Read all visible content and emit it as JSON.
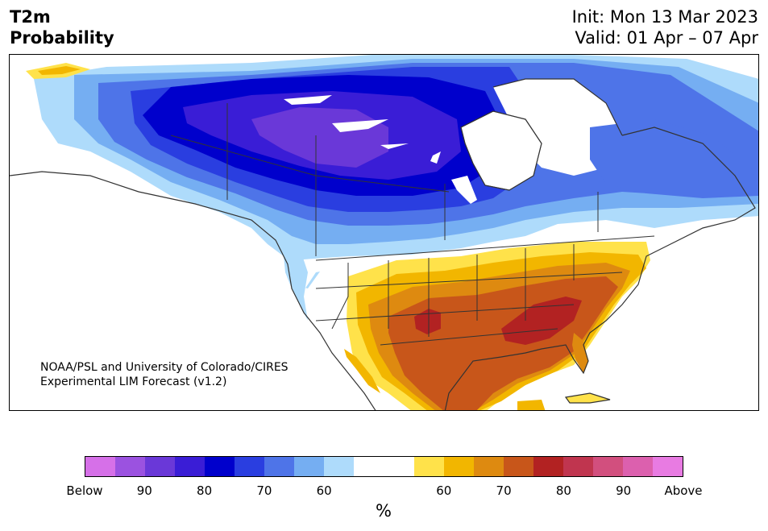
{
  "title": {
    "line1": "T2m",
    "line2": "Probability"
  },
  "info": {
    "init": "Init: Mon 13 Mar 2023",
    "valid": "Valid: 01 Apr – 07 Apr"
  },
  "credit": {
    "line1": "NOAA/PSL and University of Colorado/CIRES",
    "line2": "Experimental LIM Forecast (v1.2)"
  },
  "colorbar": {
    "colors": [
      "#d670e8",
      "#9b52e0",
      "#6a38d8",
      "#3a1dd6",
      "#0000cc",
      "#2a3ee0",
      "#4e74e8",
      "#75aef2",
      "#aedbfb",
      "#ffffff",
      "#ffffff",
      "#ffe24a",
      "#f2b600",
      "#de8a10",
      "#c8561a",
      "#b22222",
      "#c0354f",
      "#d24f7e",
      "#dc60ae",
      "#e87be2"
    ],
    "tick_labels": [
      "Below",
      "90",
      "80",
      "70",
      "60",
      "60",
      "70",
      "80",
      "90",
      "Above"
    ],
    "unit": "%"
  },
  "legend_colors": {
    "cold_strong": "#6a38d8",
    "cold": "#0000cc",
    "cool": "#4e74e8",
    "cool_light": "#aedbfb",
    "warm_light": "#ffe24a",
    "warm": "#f2b600",
    "warm_orange": "#de8a10",
    "hot": "#c8561a",
    "very_hot": "#b22222"
  }
}
